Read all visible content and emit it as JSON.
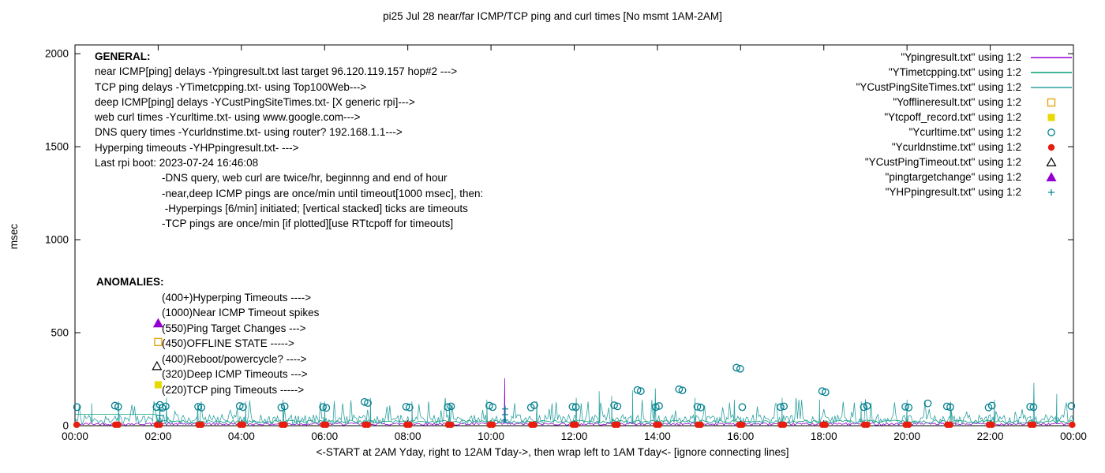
{
  "title": "pi25 Jul 28  near/far ICMP/TCP ping and curl times [No msmt 1AM-2AM]",
  "axes": {
    "ylabel": "msec",
    "xlabel": "<-START at 2AM Yday, right to 12AM Tday->, then wrap left to 1AM Tday<- [ignore connecting lines]",
    "x_ticks": [
      "00:00",
      "02:00",
      "04:00",
      "06:00",
      "08:00",
      "10:00",
      "12:00",
      "14:00",
      "16:00",
      "18:00",
      "20:00",
      "22:00",
      "00:00"
    ],
    "y_ticks": [
      "0",
      "500",
      "1000",
      "1500",
      "2000"
    ]
  },
  "general": {
    "heading": "GENERAL:",
    "lines": [
      "near ICMP[ping] delays -Ypingresult.txt last target 96.120.119.157 hop#2 --->",
      "TCP ping delays -YTimetcpping.txt- using Top100Web--->",
      "deep ICMP[ping] delays -YCustPingSiteTimes.txt- [X generic rpi]--->",
      "web curl times -Ycurltime.txt- using www.google.com--->",
      "DNS query times -Ycurldnstime.txt- using router? 192.168.1.1--->",
      "Hyperping timeouts -YHPpingresult.txt- --->",
      "Last rpi boot: 2023-07-24 16:46:08"
    ],
    "indented_lines": [
      "-DNS query, web curl are twice/hr, beginnng and end of hour",
      "-near,deep ICMP pings are once/min until timeout[1000 msec], then:",
      " -Hyperpings [6/min] initiated; [vertical stacked] ticks are timeouts",
      "-TCP pings are once/min [if plotted][use RTtcpoff for timeouts]"
    ]
  },
  "anomalies": {
    "heading": "ANOMALIES:",
    "rows": [
      "(400+)Hyperping Timeouts ---->",
      "(1000)Near ICMP Timeout spikes",
      "(550)Ping Target Changes --->",
      "(450)OFFLINE STATE ----->",
      "(400)Reboot/powercycle? ---->",
      "(320)Deep ICMP Timeouts --->",
      "(220)TCP ping Timeouts ----->"
    ]
  },
  "legend": {
    "items": [
      {
        "label": "\"Ypingresult.txt\" using 1:2",
        "type": "line",
        "color": "#9400D3"
      },
      {
        "label": "\"YTimetcpping.txt\" using 1:2",
        "type": "line",
        "color": "#009E73"
      },
      {
        "label": "\"YCustPingSiteTimes.txt\" using 1:2",
        "type": "line",
        "color": "#2FA0A0"
      },
      {
        "label": "\"Yofflineresult.txt\" using 1:2",
        "type": "square-open",
        "color": "#E69F00"
      },
      {
        "label": "\"Ytcpoff_record.txt\" using 1:2",
        "type": "square-filled",
        "color": "#E8D900"
      },
      {
        "label": "\"Ycurltime.txt\" using 1:2",
        "type": "circle-open",
        "color": "#007F8F"
      },
      {
        "label": "\"Ycurldnstime.txt\" using 1:2",
        "type": "circle-filled",
        "color": "#E51E10"
      },
      {
        "label": "\"YCustPingTimeout.txt\" using 1:2",
        "type": "triangle-open",
        "color": "#000000"
      },
      {
        "label": "\"pingtargetchange\" using 1:2",
        "type": "triangle-filled",
        "color": "#9400D3"
      },
      {
        "label": "\"YHPpingresult.txt\" using 1:2",
        "type": "plus",
        "color": "#007F8F"
      }
    ]
  },
  "chart_data": {
    "type": "line",
    "title": "pi25 Jul 28  near/far ICMP/TCP ping and curl times [No msmt 1AM-2AM]",
    "xlabel": "<-START at 2AM Yday, right to 12AM Tday->, then wrap left to 1AM Tday<- [ignore connecting lines]",
    "ylabel": "msec",
    "xlim": [
      0,
      24
    ],
    "ylim": [
      0,
      2047
    ],
    "x_tick_hours": [
      0,
      2,
      4,
      6,
      8,
      10,
      12,
      14,
      16,
      18,
      20,
      22,
      24
    ],
    "y_tick_values": [
      0,
      500,
      1000,
      1500,
      2000
    ],
    "seed": 42,
    "series": [
      {
        "name": "Ypingresult.txt",
        "style": "line",
        "color": "#9400D3",
        "noise": {
          "step_min": 2,
          "min": 3,
          "max": 16
        },
        "spikes": [
          [
            10.33,
            255
          ]
        ]
      },
      {
        "name": "YTimetcpping.txt",
        "style": "line",
        "color": "#009E73",
        "segments": [
          {
            "from": 0,
            "to": 2,
            "value": 62
          }
        ],
        "noise": {
          "step_min": 3,
          "min": 14,
          "max": 30
        },
        "spikes": []
      },
      {
        "name": "YCustPingSiteTimes.txt",
        "style": "line",
        "color": "#2FA0A0",
        "noise": {
          "step_min": 2,
          "min": 8,
          "max": 60,
          "spike_prob": 0.08,
          "spike_min": 70,
          "spike_max": 150
        },
        "spikes": [
          [
            0.4,
            120
          ],
          [
            1.05,
            130
          ],
          [
            2.2,
            150
          ],
          [
            2.95,
            120
          ],
          [
            4.1,
            130
          ],
          [
            5.0,
            140
          ],
          [
            6.0,
            130
          ],
          [
            7.1,
            150
          ],
          [
            8.1,
            130
          ],
          [
            9.0,
            120
          ],
          [
            9.9,
            140
          ],
          [
            11.1,
            130
          ],
          [
            12.05,
            150
          ],
          [
            12.6,
            185
          ],
          [
            12.9,
            160
          ],
          [
            13.4,
            190
          ],
          [
            13.95,
            200
          ],
          [
            14.9,
            150
          ],
          [
            15.85,
            140
          ],
          [
            17.0,
            150
          ],
          [
            17.9,
            140
          ],
          [
            18.9,
            130
          ],
          [
            20.0,
            140
          ],
          [
            21.05,
            130
          ],
          [
            22.1,
            140
          ],
          [
            23.05,
            230
          ],
          [
            23.6,
            170
          ]
        ]
      },
      {
        "name": "Yofflineresult.txt",
        "style": "square-open",
        "color": "#E69F00",
        "points": [
          [
            2.0,
            450
          ]
        ]
      },
      {
        "name": "Ytcpoff_record.txt",
        "style": "square-filled",
        "color": "#E8D900",
        "points": [
          [
            2.0,
            220
          ]
        ]
      },
      {
        "name": "Ycurltime.txt",
        "style": "circle-open",
        "color": "#007F8F",
        "points": [
          [
            0.05,
            100
          ],
          [
            0.96,
            108
          ],
          [
            1.04,
            102
          ],
          [
            1.96,
            100
          ],
          [
            2.04,
            112
          ],
          [
            2.1,
            96
          ],
          [
            2.18,
            104
          ],
          [
            2.96,
            102
          ],
          [
            3.04,
            98
          ],
          [
            3.96,
            106
          ],
          [
            4.04,
            100
          ],
          [
            4.96,
            98
          ],
          [
            5.04,
            104
          ],
          [
            5.96,
            100
          ],
          [
            6.04,
            96
          ],
          [
            6.96,
            128
          ],
          [
            7.04,
            122
          ],
          [
            7.96,
            102
          ],
          [
            8.04,
            98
          ],
          [
            8.96,
            100
          ],
          [
            9.04,
            104
          ],
          [
            9.96,
            108
          ],
          [
            10.04,
            100
          ],
          [
            10.96,
            98
          ],
          [
            11.04,
            110
          ],
          [
            11.96,
            102
          ],
          [
            12.04,
            100
          ],
          [
            12.96,
            110
          ],
          [
            13.04,
            104
          ],
          [
            13.52,
            192
          ],
          [
            13.6,
            186
          ],
          [
            13.96,
            100
          ],
          [
            14.04,
            106
          ],
          [
            14.52,
            196
          ],
          [
            14.6,
            190
          ],
          [
            14.96,
            102
          ],
          [
            15.04,
            98
          ],
          [
            15.9,
            312
          ],
          [
            15.99,
            306
          ],
          [
            16.04,
            100
          ],
          [
            16.96,
            100
          ],
          [
            17.04,
            104
          ],
          [
            17.96,
            186
          ],
          [
            18.04,
            180
          ],
          [
            18.96,
            100
          ],
          [
            19.04,
            106
          ],
          [
            19.96,
            102
          ],
          [
            20.04,
            98
          ],
          [
            20.5,
            120
          ],
          [
            20.96,
            104
          ],
          [
            21.04,
            100
          ],
          [
            21.96,
            98
          ],
          [
            22.04,
            108
          ],
          [
            22.96,
            102
          ],
          [
            23.04,
            100
          ],
          [
            23.95,
            106
          ]
        ]
      },
      {
        "name": "Ycurldnstime.txt",
        "style": "circle-filled",
        "color": "#E51E10",
        "schedule": {
          "hours": 24,
          "offsets": [
            -0.03,
            0.04
          ],
          "value": 5
        }
      },
      {
        "name": "YCustPingTimeout.txt",
        "style": "triangle-open",
        "color": "#000000",
        "points": [
          [
            1.97,
            320
          ]
        ]
      },
      {
        "name": "pingtargetchange",
        "style": "triangle-filled",
        "color": "#9400D3",
        "points": [
          [
            2.0,
            550
          ]
        ]
      },
      {
        "name": "YHPpingresult.txt",
        "style": "plus",
        "color": "#007F8F",
        "points": [
          [
            2.04,
            25
          ],
          [
            2.04,
            55
          ],
          [
            2.04,
            85
          ],
          [
            10.34,
            30
          ],
          [
            10.34,
            60
          ],
          [
            10.34,
            90
          ]
        ]
      }
    ]
  }
}
